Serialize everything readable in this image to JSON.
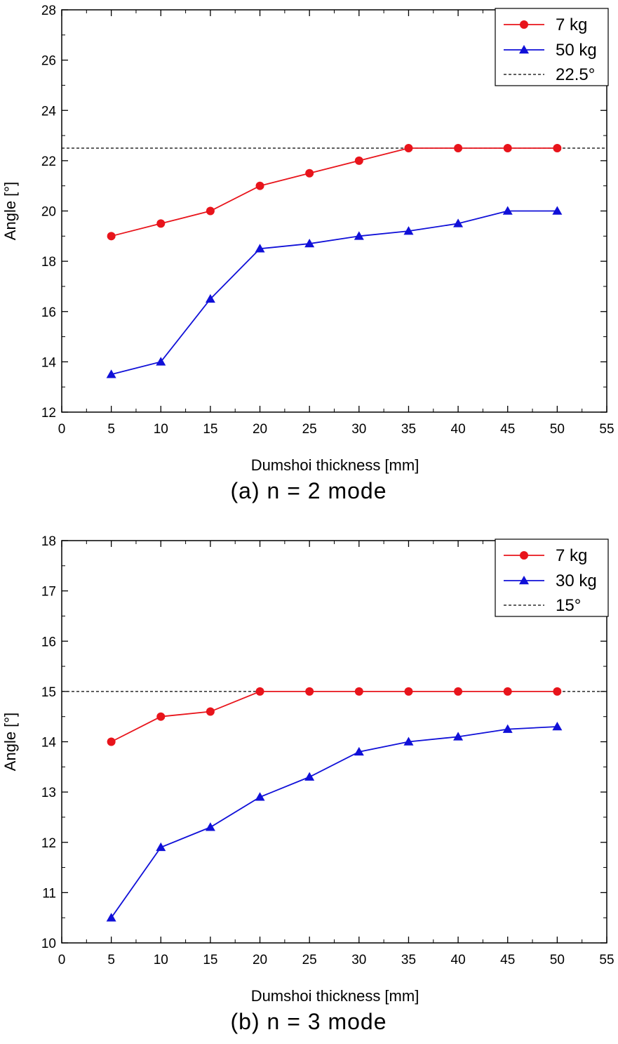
{
  "chart_data": [
    {
      "type": "line",
      "caption": "(a)  n = 2  mode",
      "xlabel": "Dumshoi thickness [mm]",
      "ylabel": "Angle [°]",
      "xlim": [
        0,
        55
      ],
      "ylim": [
        12,
        28
      ],
      "xticks": [
        0,
        5,
        10,
        15,
        20,
        25,
        30,
        35,
        40,
        45,
        50,
        55
      ],
      "yticks": [
        12,
        14,
        16,
        18,
        20,
        22,
        24,
        26,
        28
      ],
      "grid": false,
      "legend_position": "top-right",
      "x": [
        5,
        10,
        15,
        20,
        25,
        30,
        35,
        40,
        45,
        50
      ],
      "series": [
        {
          "name": "7 kg",
          "color": "#e8141b",
          "marker": "circle",
          "values": [
            19.0,
            19.5,
            20.0,
            21.0,
            21.5,
            22.0,
            22.5,
            22.5,
            22.5,
            22.5
          ]
        },
        {
          "name": "50 kg",
          "color": "#1010d8",
          "marker": "triangle",
          "values": [
            13.5,
            14.0,
            16.5,
            18.5,
            18.7,
            19.0,
            19.2,
            19.5,
            20.0,
            20.0
          ]
        }
      ],
      "reference_line": {
        "name": "22.5°",
        "value": 22.5,
        "color": "#000000",
        "style": "dashed"
      }
    },
    {
      "type": "line",
      "caption": "(b)  n = 3  mode",
      "xlabel": "Dumshoi thickness [mm]",
      "ylabel": "Angle [°]",
      "xlim": [
        0,
        55
      ],
      "ylim": [
        10,
        18
      ],
      "xticks": [
        0,
        5,
        10,
        15,
        20,
        25,
        30,
        35,
        40,
        45,
        50,
        55
      ],
      "yticks": [
        10,
        11,
        12,
        13,
        14,
        15,
        16,
        17,
        18
      ],
      "grid": false,
      "legend_position": "top-right",
      "x": [
        5,
        10,
        15,
        20,
        25,
        30,
        35,
        40,
        45,
        50
      ],
      "series": [
        {
          "name": "7 kg",
          "color": "#e8141b",
          "marker": "circle",
          "values": [
            14.0,
            14.5,
            14.6,
            15.0,
            15.0,
            15.0,
            15.0,
            15.0,
            15.0,
            15.0
          ]
        },
        {
          "name": "30 kg",
          "color": "#1010d8",
          "marker": "triangle",
          "values": [
            10.5,
            11.9,
            12.3,
            12.9,
            13.3,
            13.8,
            14.0,
            14.1,
            14.25,
            14.3
          ]
        }
      ],
      "reference_line": {
        "name": "15°",
        "value": 15,
        "color": "#000000",
        "style": "dashed"
      }
    }
  ]
}
